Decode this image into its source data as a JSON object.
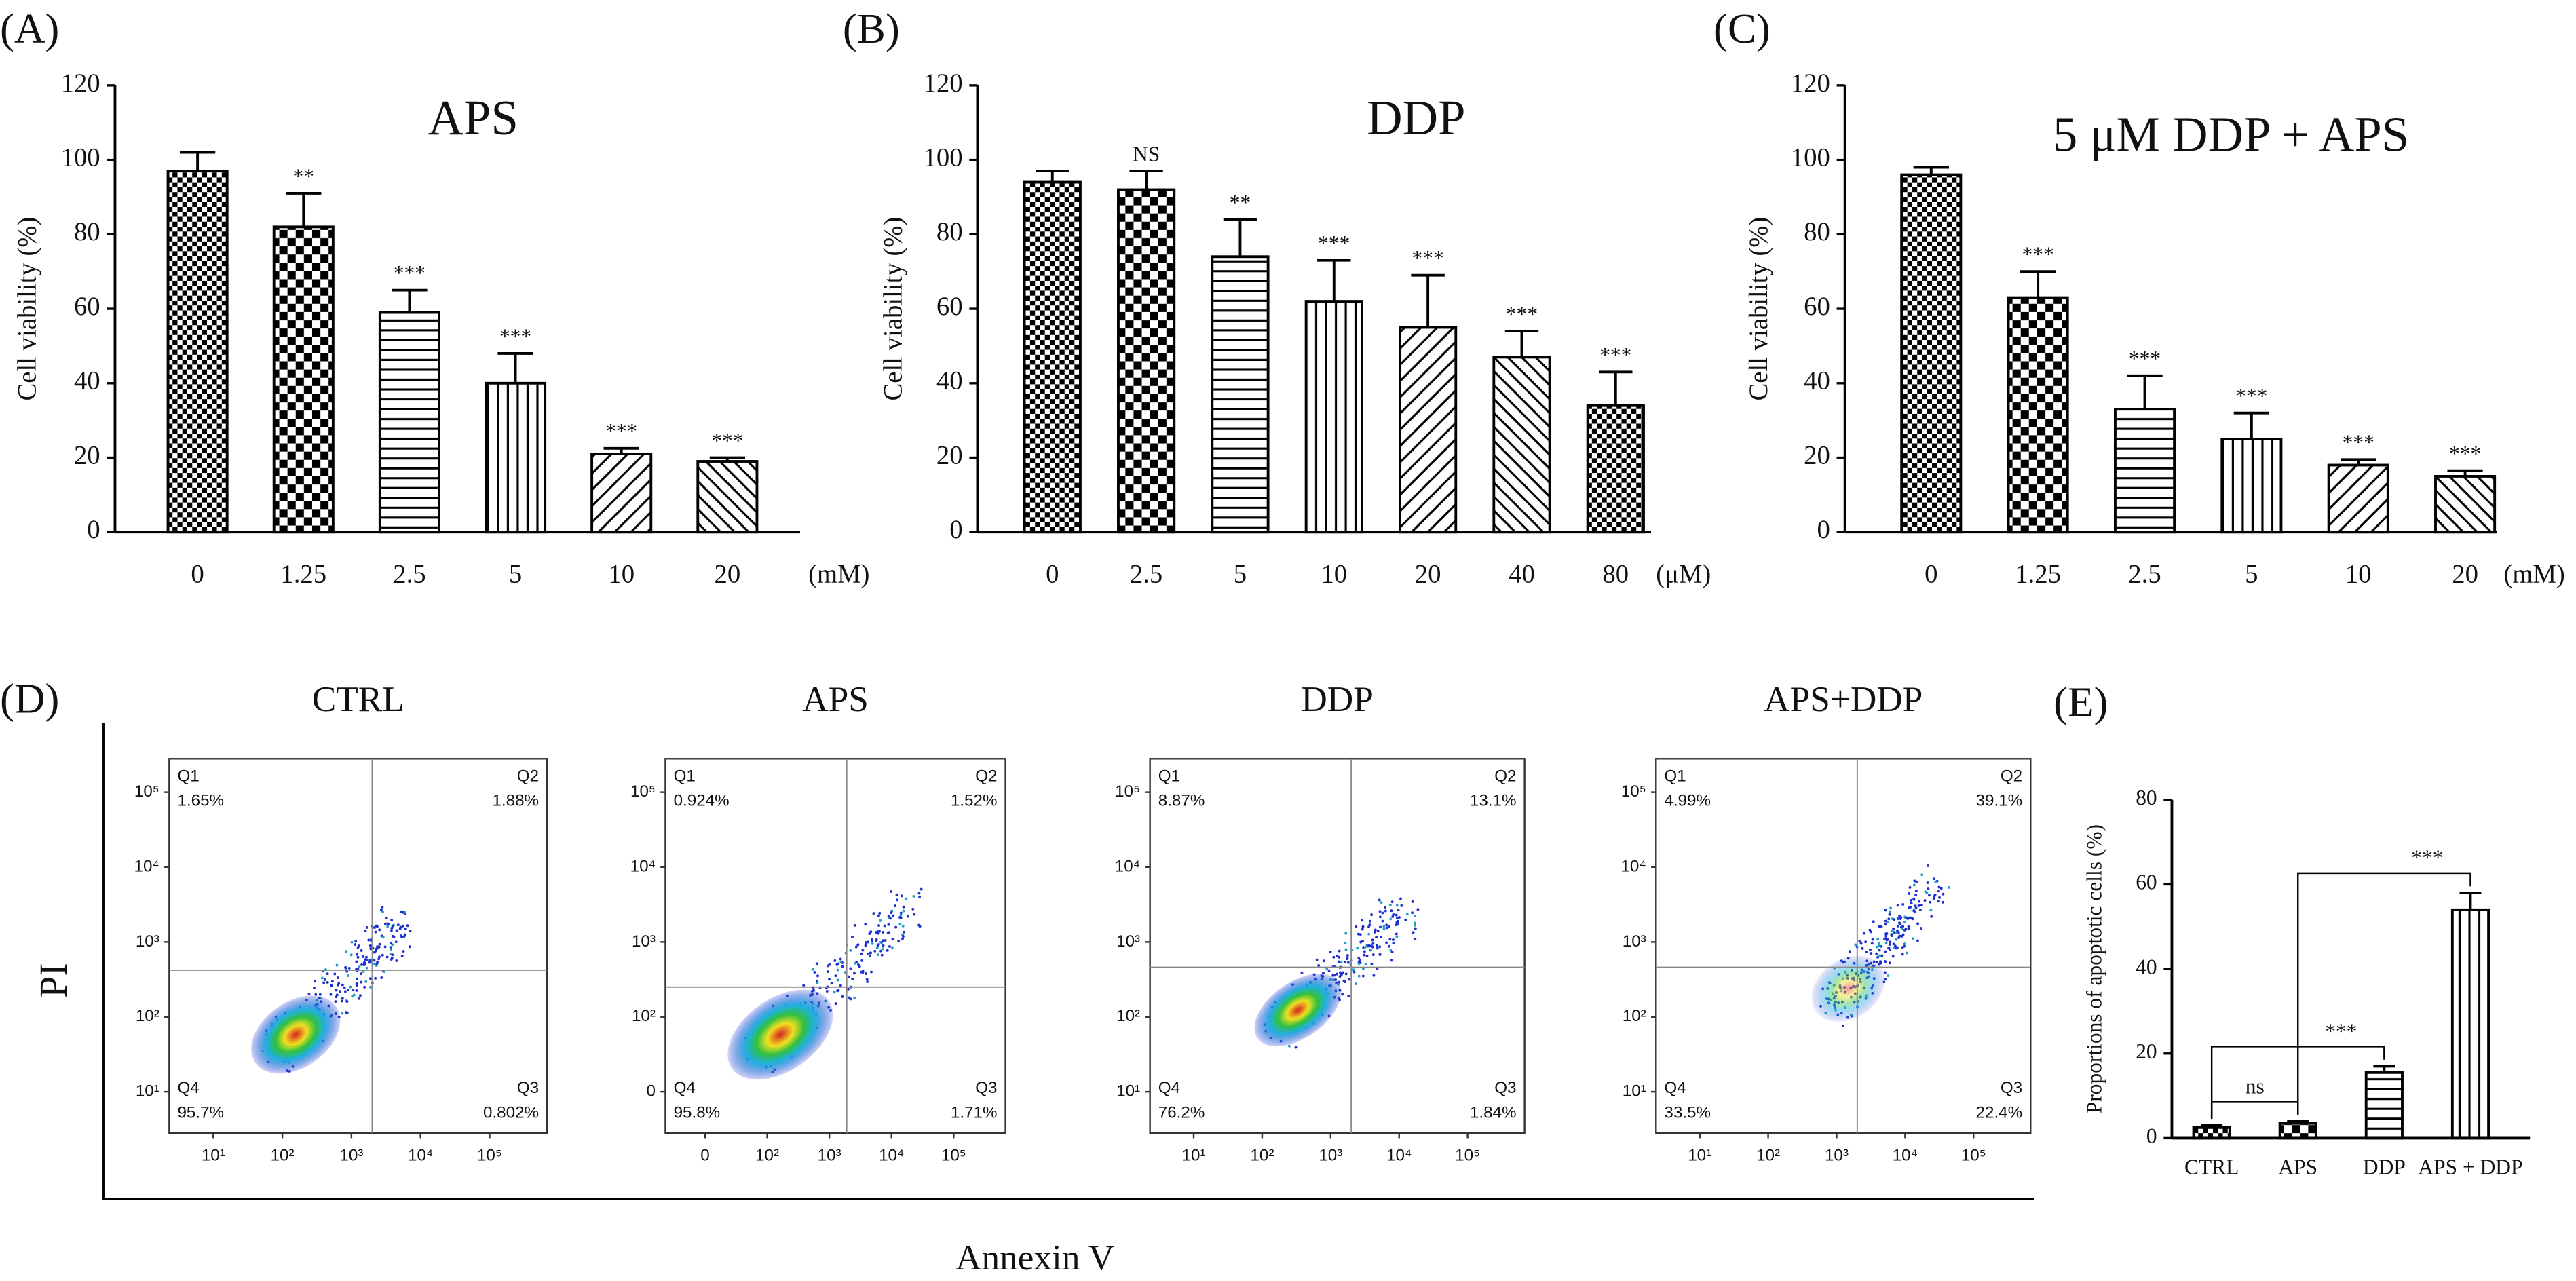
{
  "chart_data": [
    {
      "type": "bar",
      "panel": "(A)",
      "title": "APS",
      "y_label": "Cell viability (%)",
      "unit": "(mM)",
      "categories": [
        "0",
        "1.25",
        "2.5",
        "5",
        "10",
        "20"
      ],
      "values": [
        97,
        82,
        59,
        40,
        21,
        19
      ],
      "errors": [
        5,
        9,
        6,
        8,
        1.5,
        1
      ],
      "significance": [
        null,
        "**",
        "***",
        "***",
        "***",
        "***"
      ],
      "ylim": [
        0,
        120
      ],
      "yticks": [
        0,
        20,
        40,
        60,
        80,
        100,
        120
      ],
      "color": "#000000"
    },
    {
      "type": "bar",
      "panel": "(B)",
      "title": "DDP",
      "y_label": "Cell viability (%)",
      "unit": "(μM)",
      "categories": [
        "0",
        "2.5",
        "5",
        "10",
        "20",
        "40",
        "80"
      ],
      "values": [
        94,
        92,
        74,
        62,
        55,
        47,
        34
      ],
      "errors": [
        3,
        5,
        10,
        11,
        14,
        7,
        9
      ],
      "significance": [
        null,
        "NS",
        "**",
        "***",
        "***",
        "***",
        "***"
      ],
      "ylim": [
        0,
        120
      ],
      "yticks": [
        0,
        20,
        40,
        60,
        80,
        100,
        120
      ],
      "color": "#000000"
    },
    {
      "type": "bar",
      "panel": "(C)",
      "title": "5 μM DDP + APS",
      "y_label": "Cell viability (%)",
      "unit": "(mM)",
      "categories": [
        "0",
        "1.25",
        "2.5",
        "5",
        "10",
        "20"
      ],
      "values": [
        96,
        63,
        33,
        25,
        18,
        15
      ],
      "errors": [
        2,
        7,
        9,
        7,
        1.5,
        1.5
      ],
      "significance": [
        null,
        "***",
        "***",
        "***",
        "***",
        "***"
      ],
      "ylim": [
        0,
        120
      ],
      "yticks": [
        0,
        20,
        40,
        60,
        80,
        100,
        120
      ],
      "color": "#000000"
    },
    {
      "type": "flow",
      "panel": "(D)",
      "x_label": "Annexin V",
      "y_label": "PI",
      "plots": [
        {
          "title": "CTRL",
          "quadrants": [
            "Q1",
            "Q2",
            "Q3",
            "Q4"
          ],
          "values": [
            1.65,
            1.88,
            0.802,
            95.7
          ],
          "value_labels": [
            "1.65%",
            "1.88%",
            "0.802%",
            "95.7%"
          ],
          "gate_x": 2000,
          "gate_y": 420,
          "xlim": [
            2.3,
            680000
          ],
          "ylim": [
            2.8,
            280000
          ],
          "xticks": [
            {
              "value": 10,
              "label": "10¹"
            },
            {
              "value": 100,
              "label": "10²"
            },
            {
              "value": 1000,
              "label": "10³"
            },
            {
              "value": 10000,
              "label": "10⁴"
            },
            {
              "value": 100000,
              "label": "10⁵"
            }
          ],
          "yticks": [
            {
              "value": 10,
              "label": "10¹"
            },
            {
              "value": 100,
              "label": "10²"
            },
            {
              "value": 1000,
              "label": "10³"
            },
            {
              "value": 10000,
              "label": "10⁴"
            },
            {
              "value": 100000,
              "label": "10⁵"
            }
          ]
        },
        {
          "title": "APS",
          "quadrants": [
            "Q1",
            "Q2",
            "Q3",
            "Q4"
          ],
          "values": [
            0.924,
            1.52,
            1.71,
            95.8
          ],
          "value_labels": [
            "0.924%",
            "1.52%",
            "1.71%",
            "95.8%"
          ],
          "gate_x": 1900,
          "gate_y": 250,
          "xlim": [
            2.3,
            680000
          ],
          "ylim": [
            2.8,
            280000
          ],
          "xticks": [
            0,
            {
              "value": 100,
              "label": "10²"
            },
            {
              "value": 1000,
              "label": "10³"
            },
            {
              "value": 10000,
              "label": "10⁴"
            },
            {
              "value": 100000,
              "label": "10⁵"
            }
          ],
          "yticks": [
            0,
            {
              "value": 100,
              "label": "10²"
            },
            {
              "value": 1000,
              "label": "10³"
            },
            {
              "value": 10000,
              "label": "10⁴"
            },
            {
              "value": 100000,
              "label": "10⁵"
            }
          ]
        },
        {
          "title": "DDP",
          "quadrants": [
            "Q1",
            "Q2",
            "Q3",
            "Q4"
          ],
          "values": [
            8.87,
            13.1,
            1.84,
            76.2
          ],
          "value_labels": [
            "8.87%",
            "13.1%",
            "1.84%",
            "76.2%"
          ],
          "gate_x": 2000,
          "gate_y": 460,
          "xlim": [
            2.3,
            680000
          ],
          "ylim": [
            2.8,
            280000
          ],
          "xticks": [
            {
              "value": 10,
              "label": "10¹"
            },
            {
              "value": 100,
              "label": "10²"
            },
            {
              "value": 1000,
              "label": "10³"
            },
            {
              "value": 10000,
              "label": "10⁴"
            },
            {
              "value": 100000,
              "label": "10⁵"
            }
          ],
          "yticks": [
            {
              "value": 10,
              "label": "10¹"
            },
            {
              "value": 100,
              "label": "10²"
            },
            {
              "value": 1000,
              "label": "10³"
            },
            {
              "value": 10000,
              "label": "10⁴"
            },
            {
              "value": 100000,
              "label": "10⁵"
            }
          ]
        },
        {
          "title": "APS+DDP",
          "quadrants": [
            "Q1",
            "Q2",
            "Q3",
            "Q4"
          ],
          "values": [
            4.99,
            39.1,
            22.4,
            33.5
          ],
          "value_labels": [
            "4.99%",
            "39.1%",
            "22.4%",
            "33.5%"
          ],
          "gate_x": 2000,
          "gate_y": 460,
          "xlim": [
            2.3,
            680000
          ],
          "ylim": [
            2.8,
            280000
          ],
          "xticks": [
            {
              "value": 10,
              "label": "10¹"
            },
            {
              "value": 100,
              "label": "10²"
            },
            {
              "value": 1000,
              "label": "10³"
            },
            {
              "value": 10000,
              "label": "10⁴"
            },
            {
              "value": 100000,
              "label": "10⁵"
            }
          ],
          "yticks": [
            {
              "value": 10,
              "label": "10¹"
            },
            {
              "value": 100,
              "label": "10²"
            },
            {
              "value": 1000,
              "label": "10³"
            },
            {
              "value": 10000,
              "label": "10⁴"
            },
            {
              "value": 100000,
              "label": "10⁵"
            }
          ]
        }
      ]
    },
    {
      "type": "bar",
      "panel": "(E)",
      "y_label": "Proportions of apoptotic cells (%)",
      "categories": [
        "CTRL",
        "APS",
        "DDP",
        "APS + DDP"
      ],
      "values": [
        2.5,
        3.5,
        15.5,
        54
      ],
      "errors": [
        0.5,
        0.5,
        1.5,
        4
      ],
      "comparisons": [
        {
          "pair": [
            0,
            1
          ],
          "label": "ns"
        },
        {
          "pair": [
            0,
            2
          ],
          "label": "***"
        },
        {
          "pair": [
            1,
            3
          ],
          "label": "***"
        }
      ],
      "ylim": [
        0,
        80
      ],
      "yticks": [
        0,
        20,
        40,
        60,
        80
      ],
      "color": "#000000"
    }
  ]
}
